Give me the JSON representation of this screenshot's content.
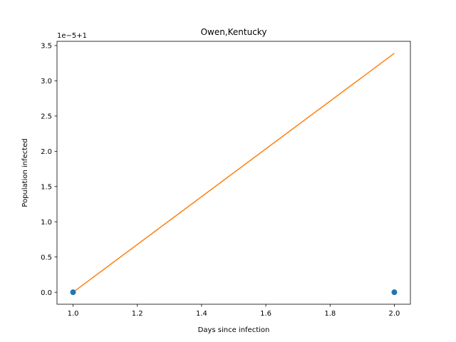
{
  "chart_data": {
    "type": "scatter",
    "title": "Owen,Kentucky",
    "xlabel": "Days since infection",
    "ylabel": "Population infected",
    "offset_text": "1e−5+1",
    "xlim": [
      0.95,
      2.05
    ],
    "ylim": [
      -0.17,
      3.56
    ],
    "xticks": [
      1.0,
      1.2,
      1.4,
      1.6,
      1.8,
      2.0
    ],
    "xtick_labels": [
      "1.0",
      "1.2",
      "1.4",
      "1.6",
      "1.8",
      "2.0"
    ],
    "yticks": [
      0.0,
      0.5,
      1.0,
      1.5,
      2.0,
      2.5,
      3.0,
      3.5
    ],
    "ytick_labels": [
      "0.0",
      "0.5",
      "1.0",
      "1.5",
      "2.0",
      "2.5",
      "3.0",
      "3.5"
    ],
    "grid": false,
    "series": [
      {
        "kind": "scatter",
        "color": "#1f77b4",
        "x": [
          1.0,
          2.0
        ],
        "y": [
          0.0,
          0.0
        ]
      },
      {
        "kind": "line",
        "color": "#ff7f0e",
        "x": [
          1.0,
          2.0
        ],
        "y": [
          0.0,
          3.39
        ]
      }
    ]
  }
}
